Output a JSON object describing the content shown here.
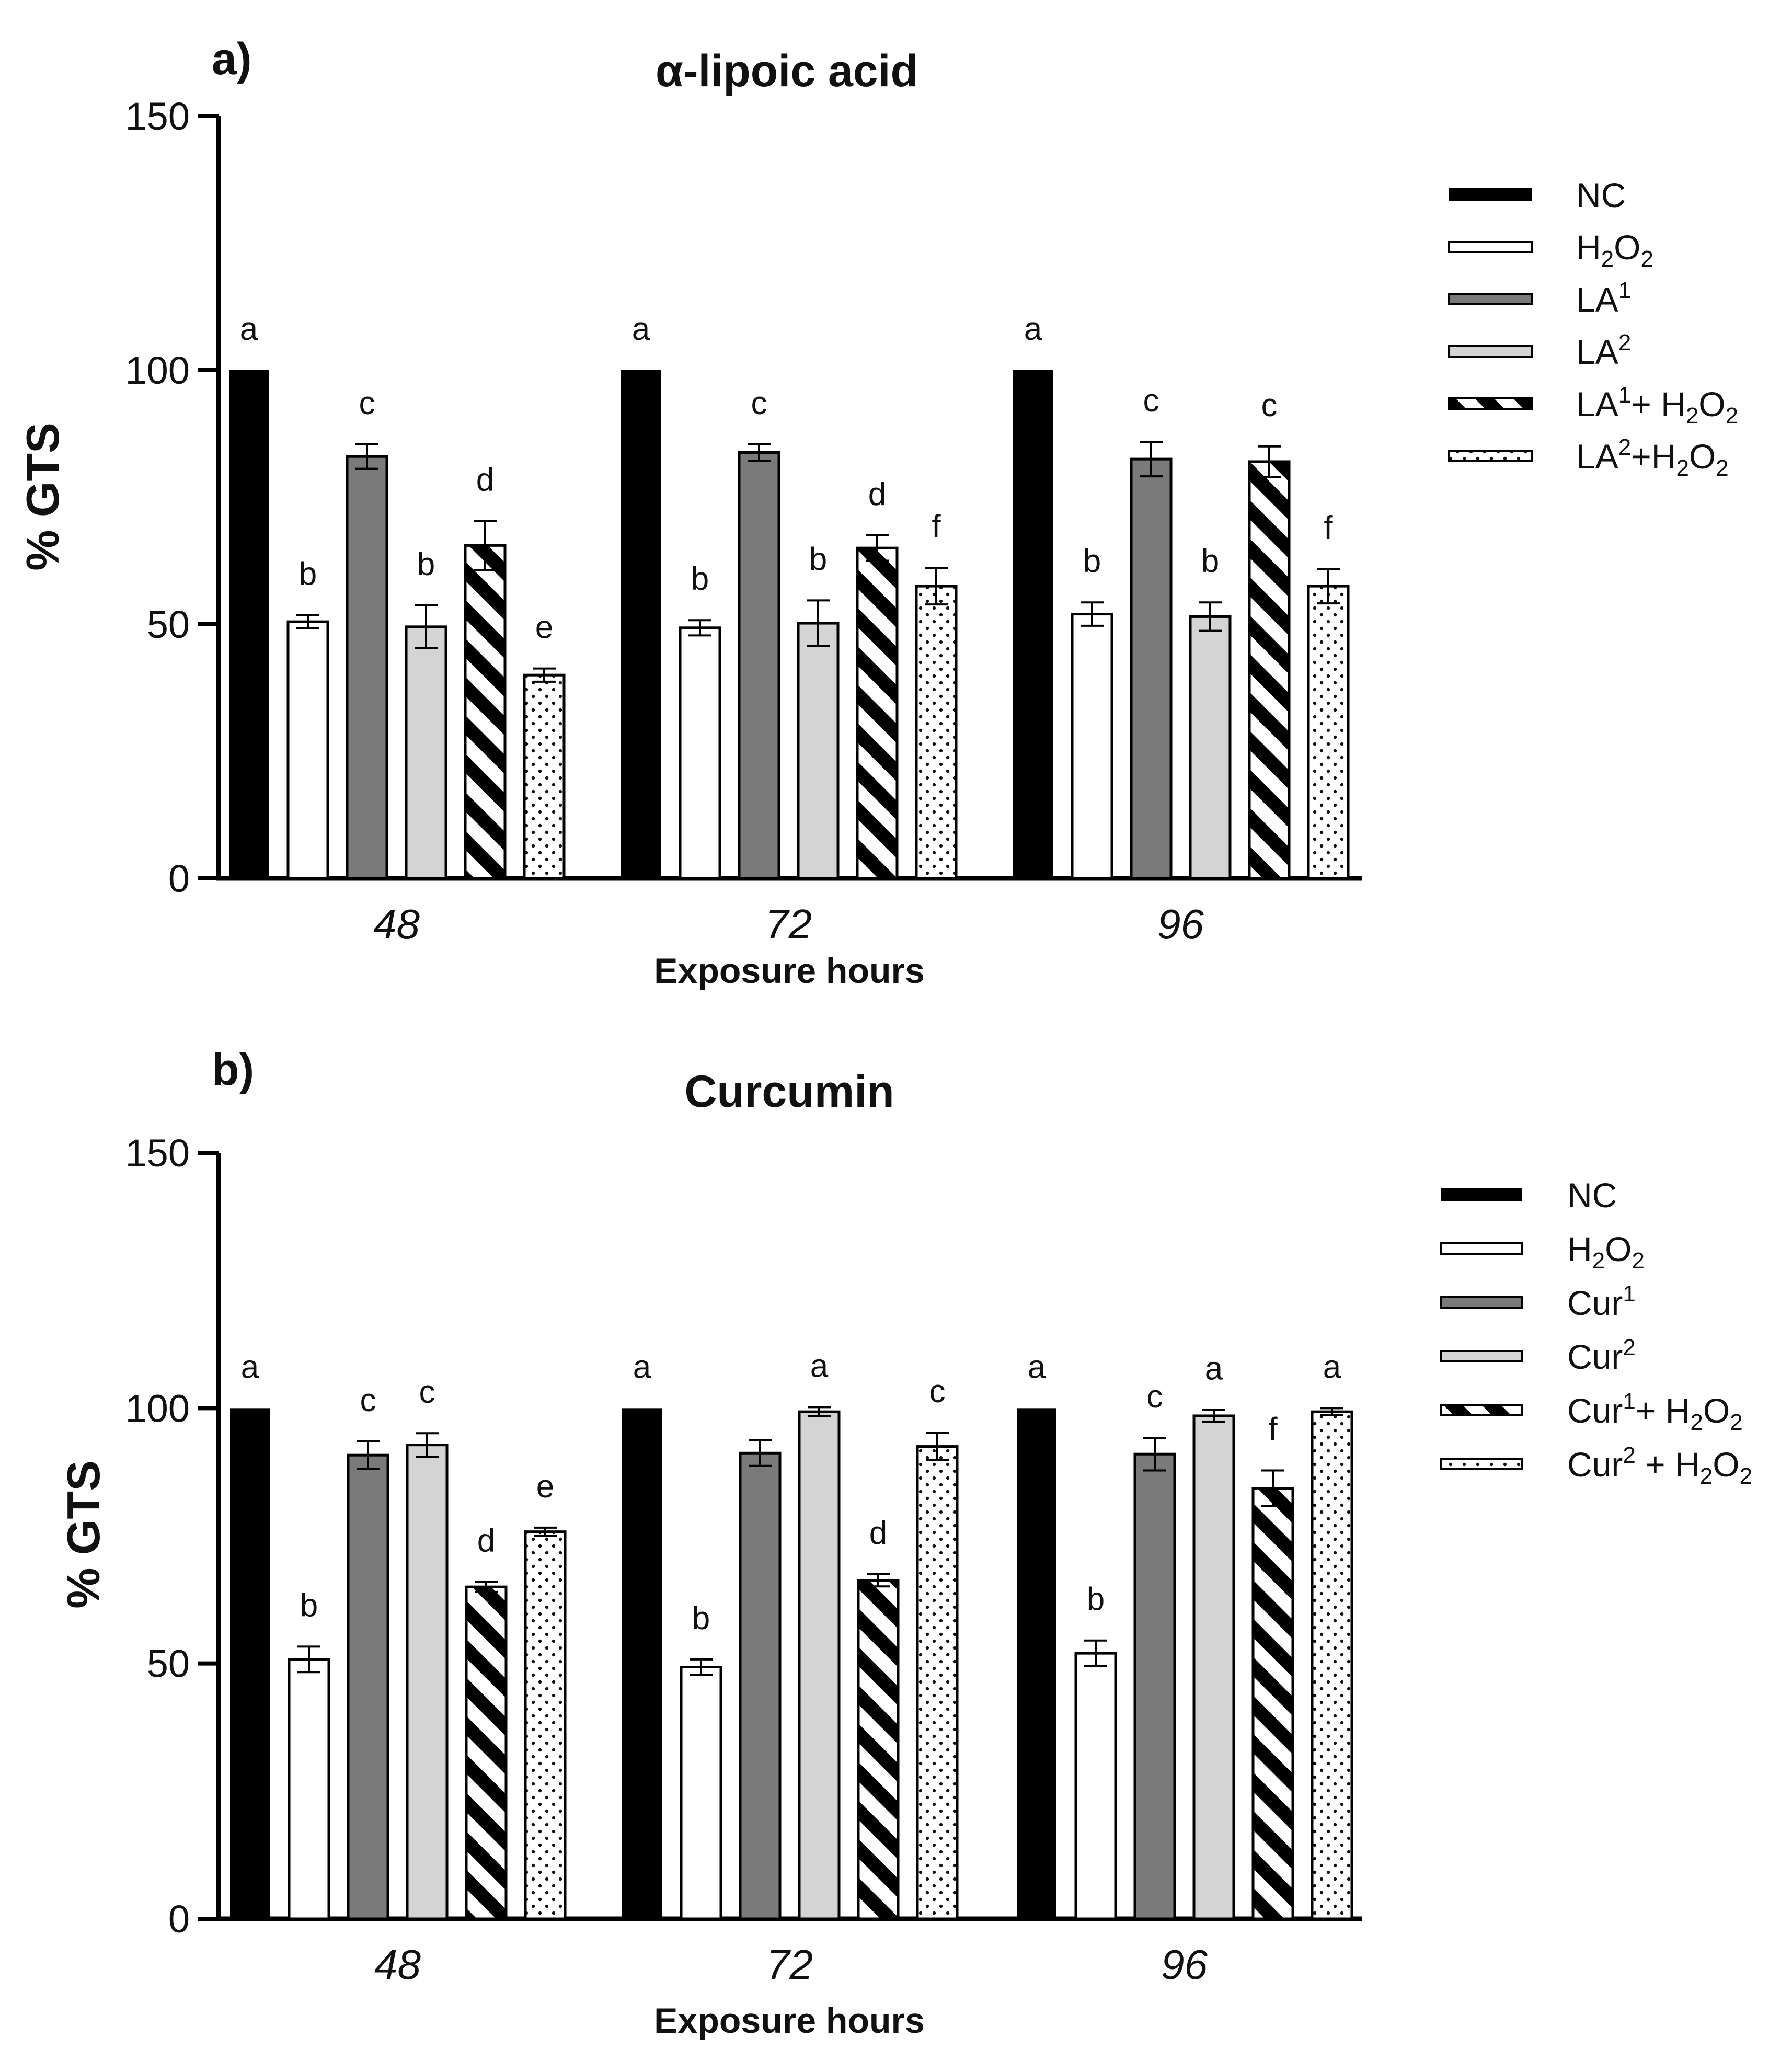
{
  "chart_data": [
    {
      "type": "bar",
      "panel_label": "a)",
      "title": "α-lipoic acid",
      "xlabel": "Exposure hours",
      "ylabel": "% GTS",
      "ylim": [
        0,
        150
      ],
      "yticks": [
        "0",
        "50",
        "100",
        "150"
      ],
      "categories": [
        "48",
        "72",
        "96"
      ],
      "series": [
        {
          "name": "NC",
          "legend": [
            "NC"
          ],
          "style": "black",
          "values": [
            100,
            100,
            100
          ],
          "errors": [
            0,
            0,
            0
          ],
          "letters": [
            "a",
            "a",
            "a"
          ]
        },
        {
          "name": "H2O2",
          "legend": [
            "H",
            "2",
            "O",
            "2"
          ],
          "style": "white",
          "values": [
            50.5,
            49.3,
            52.0
          ],
          "errors": [
            1.3,
            1.5,
            2.3
          ],
          "letters": [
            "b",
            "b",
            "b"
          ]
        },
        {
          "name": "LA1",
          "legend": [
            "LA",
            "1"
          ],
          "style": "darkgray",
          "values": [
            83.0,
            83.8,
            82.5
          ],
          "errors": [
            2.4,
            1.6,
            3.4
          ],
          "letters": [
            "c",
            "c",
            "c"
          ]
        },
        {
          "name": "LA2",
          "legend": [
            "LA",
            "2"
          ],
          "style": "lightgray",
          "values": [
            49.5,
            50.2,
            51.5
          ],
          "errors": [
            4.2,
            4.5,
            2.8
          ],
          "letters": [
            "b",
            "b",
            "b"
          ]
        },
        {
          "name": "LA1+ H2O2",
          "legend": [
            "LA",
            "1",
            "+ H",
            "2",
            "O",
            "2"
          ],
          "style": "stripes",
          "values": [
            65.5,
            65.0,
            82.0
          ],
          "errors": [
            4.8,
            2.5,
            3.0
          ],
          "letters": [
            "d",
            "d",
            "c"
          ]
        },
        {
          "name": "LA2+H2O2",
          "legend": [
            "LA",
            "2",
            "+H",
            "2",
            "O",
            "2"
          ],
          "style": "dots",
          "values": [
            40.0,
            57.5,
            57.5
          ],
          "errors": [
            1.3,
            3.6,
            3.4
          ],
          "letters": [
            "e",
            "f",
            "f"
          ]
        }
      ]
    },
    {
      "type": "bar",
      "panel_label": "b)",
      "title": "Curcumin",
      "xlabel": "Exposure hours",
      "ylabel": "% GTS",
      "ylim": [
        0,
        150
      ],
      "yticks": [
        "0",
        "50",
        "100",
        "150"
      ],
      "categories": [
        "48",
        "72",
        "96"
      ],
      "series": [
        {
          "name": "NC",
          "legend": [
            "NC"
          ],
          "style": "black",
          "values": [
            100,
            100,
            100
          ],
          "errors": [
            0,
            0,
            0
          ],
          "letters": [
            "a",
            "a",
            "a"
          ]
        },
        {
          "name": "H2O2",
          "legend": [
            "H",
            "2",
            "O",
            "2"
          ],
          "style": "white",
          "values": [
            50.8,
            49.3,
            52.0
          ],
          "errors": [
            2.5,
            1.5,
            2.5
          ],
          "letters": [
            "b",
            "b",
            "b"
          ]
        },
        {
          "name": "Cur1",
          "legend": [
            "Cur",
            "1"
          ],
          "style": "darkgray",
          "values": [
            90.8,
            91.2,
            91.0
          ],
          "errors": [
            2.7,
            2.5,
            3.2
          ],
          "letters": [
            "c",
            "",
            "c"
          ]
        },
        {
          "name": "Cur2",
          "legend": [
            "Cur",
            "2"
          ],
          "style": "lightgray",
          "values": [
            92.8,
            99.3,
            98.5
          ],
          "errors": [
            2.3,
            0.9,
            1.2
          ],
          "letters": [
            "c",
            "a",
            "a"
          ]
        },
        {
          "name": "Cur1+ H2O2",
          "legend": [
            "Cur",
            "1",
            "+ H",
            "2",
            "O",
            "2"
          ],
          "style": "stripes",
          "values": [
            65.0,
            66.3,
            84.3
          ],
          "errors": [
            1.0,
            1.2,
            3.5
          ],
          "letters": [
            "d",
            "d",
            "f"
          ]
        },
        {
          "name": "Cur2 + H2O2",
          "legend": [
            "Cur",
            "2",
            " + H",
            "2",
            "O",
            "2"
          ],
          "style": "dots",
          "values": [
            75.8,
            92.5,
            99.3
          ],
          "errors": [
            0.8,
            2.7,
            0.7
          ],
          "letters": [
            "e",
            "c",
            "a"
          ]
        }
      ]
    }
  ]
}
